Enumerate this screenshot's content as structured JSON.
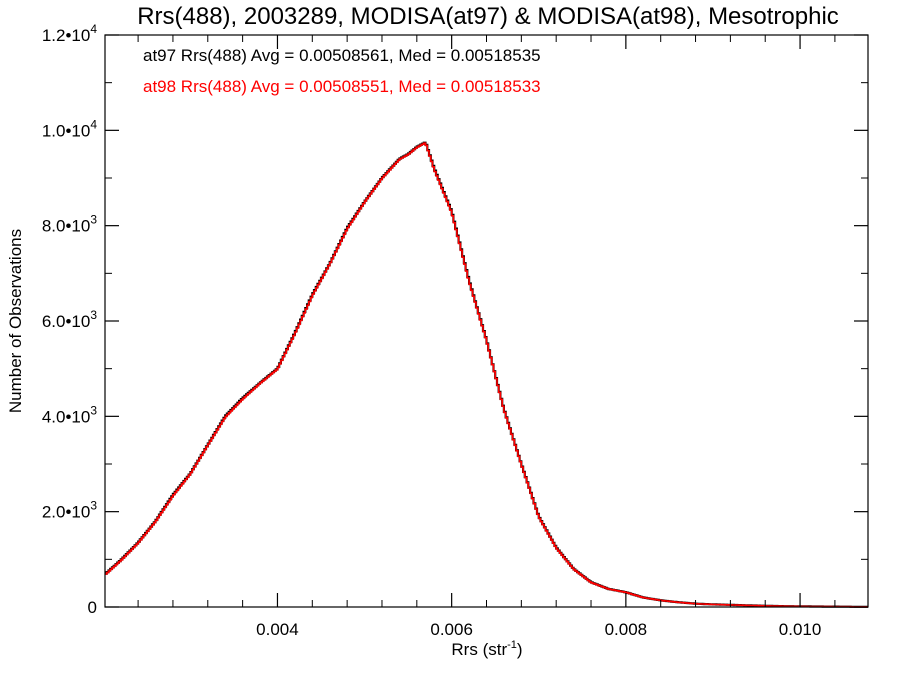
{
  "chart_data": {
    "type": "histogram-step",
    "title": "Rrs(488), 2003289, MODISA(at97) & MODISA(at98), Mesotrophic",
    "xlabel": "Rrs (str",
    "xlabel_exp": "-1",
    "xlabel_end": ")",
    "ylabel": "Number of Observations",
    "xlim": [
      0.00202,
      0.01078
    ],
    "ylim": [
      0,
      12000
    ],
    "x_ticks": [
      {
        "value": 0.004,
        "label": "0.004"
      },
      {
        "value": 0.006,
        "label": "0.006"
      },
      {
        "value": 0.008,
        "label": "0.008"
      },
      {
        "value": 0.01,
        "label": "0.010"
      }
    ],
    "y_ticks": [
      {
        "value": 0,
        "mant": "0",
        "exp": ""
      },
      {
        "value": 2000,
        "mant": "2.0•10",
        "exp": "3"
      },
      {
        "value": 4000,
        "mant": "4.0•10",
        "exp": "3"
      },
      {
        "value": 6000,
        "mant": "6.0•10",
        "exp": "3"
      },
      {
        "value": 8000,
        "mant": "8.0•10",
        "exp": "3"
      },
      {
        "value": 10000,
        "mant": "1.0•10",
        "exp": "4"
      },
      {
        "value": 12000,
        "mant": "1.2•10",
        "exp": "4"
      }
    ],
    "annotations": [
      {
        "text": "at97 Rrs(488) Avg = 0.00508561, Med = 0.00518535",
        "color": "#000000"
      },
      {
        "text": "at98 Rrs(488) Avg = 0.00508551, Med = 0.00518533",
        "color": "#ff0000"
      }
    ],
    "series": [
      {
        "name": "at97",
        "color": "#000000",
        "x": [
          0.002,
          0.0022,
          0.0024,
          0.0026,
          0.0028,
          0.003,
          0.0032,
          0.0034,
          0.0036,
          0.0038,
          0.004,
          0.0042,
          0.0044,
          0.0046,
          0.0048,
          0.005,
          0.0052,
          0.0054,
          0.0055,
          0.0056,
          0.0057,
          0.0058,
          0.006,
          0.0062,
          0.0064,
          0.0066,
          0.0068,
          0.007,
          0.0072,
          0.0074,
          0.0076,
          0.0078,
          0.008,
          0.0082,
          0.0084,
          0.0086,
          0.0088,
          0.009,
          0.0092,
          0.0094,
          0.0096,
          0.0098,
          0.01,
          0.0102,
          0.0104,
          0.0106,
          0.0108
        ],
        "y": [
          650,
          980,
          1350,
          1800,
          2350,
          2800,
          3400,
          4000,
          4380,
          4700,
          5000,
          5750,
          6550,
          7200,
          7950,
          8500,
          9000,
          9400,
          9500,
          9650,
          9750,
          9200,
          8300,
          6850,
          5600,
          4150,
          3000,
          1900,
          1250,
          800,
          520,
          380,
          310,
          200,
          140,
          100,
          70,
          55,
          45,
          35,
          25,
          18,
          14,
          10,
          8,
          5,
          4
        ]
      },
      {
        "name": "at98",
        "color": "#ff0000",
        "x": [
          0.002,
          0.0022,
          0.0024,
          0.0026,
          0.0028,
          0.003,
          0.0032,
          0.0034,
          0.0036,
          0.0038,
          0.004,
          0.0042,
          0.0044,
          0.0046,
          0.0048,
          0.005,
          0.0052,
          0.0054,
          0.0055,
          0.0056,
          0.0057,
          0.0058,
          0.006,
          0.0062,
          0.0064,
          0.0066,
          0.0068,
          0.007,
          0.0072,
          0.0074,
          0.0076,
          0.0078,
          0.008,
          0.0082,
          0.0084,
          0.0086,
          0.0088,
          0.009,
          0.0092,
          0.0094,
          0.0096,
          0.0098,
          0.01,
          0.0102,
          0.0104,
          0.0106,
          0.0108
        ],
        "y": [
          640,
          970,
          1340,
          1790,
          2330,
          2790,
          3390,
          3980,
          4360,
          4690,
          4990,
          5730,
          6530,
          7190,
          7930,
          8490,
          8990,
          9390,
          9490,
          9640,
          9740,
          9180,
          8280,
          6830,
          5590,
          4140,
          2990,
          1890,
          1240,
          795,
          515,
          378,
          308,
          198,
          139,
          99,
          69,
          54,
          44,
          34,
          24,
          17,
          13,
          9,
          7,
          5,
          4
        ]
      }
    ]
  }
}
